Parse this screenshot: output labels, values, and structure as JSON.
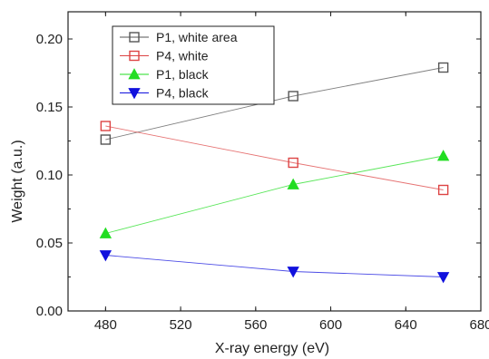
{
  "chart_data": {
    "type": "line",
    "title": "",
    "xlabel": "X-ray energy (eV)",
    "ylabel": "Weight (a.u.)",
    "xlim": [
      460,
      680
    ],
    "ylim": [
      0.0,
      0.22
    ],
    "x_ticks": [
      480,
      520,
      560,
      600,
      640,
      680
    ],
    "x_tick_labels": [
      "480",
      "520",
      "560",
      "600",
      "640",
      "680"
    ],
    "y_ticks": [
      0.0,
      0.05,
      0.1,
      0.15,
      0.2
    ],
    "y_tick_labels": [
      "0.00",
      "0.05",
      "0.10",
      "0.15",
      "0.20"
    ],
    "grid": false,
    "legend_position": "top-left",
    "series": [
      {
        "name": "P1, white area",
        "marker": "open-square",
        "color": "#555555",
        "points": [
          {
            "x": 480,
            "y": 0.126
          },
          {
            "x": 580,
            "y": 0.158
          },
          {
            "x": 660,
            "y": 0.179
          }
        ]
      },
      {
        "name": "P4, white",
        "marker": "open-square",
        "color": "#dd4444",
        "points": [
          {
            "x": 480,
            "y": 0.136
          },
          {
            "x": 580,
            "y": 0.109
          },
          {
            "x": 660,
            "y": 0.089
          }
        ]
      },
      {
        "name": "P1, black",
        "marker": "filled-triangle-up",
        "color": "#22dd22",
        "points": [
          {
            "x": 480,
            "y": 0.057
          },
          {
            "x": 580,
            "y": 0.093
          },
          {
            "x": 660,
            "y": 0.114
          }
        ]
      },
      {
        "name": "P4, black",
        "marker": "filled-triangle-down",
        "color": "#1111dd",
        "points": [
          {
            "x": 480,
            "y": 0.041
          },
          {
            "x": 580,
            "y": 0.029
          },
          {
            "x": 660,
            "y": 0.025
          }
        ]
      }
    ]
  }
}
